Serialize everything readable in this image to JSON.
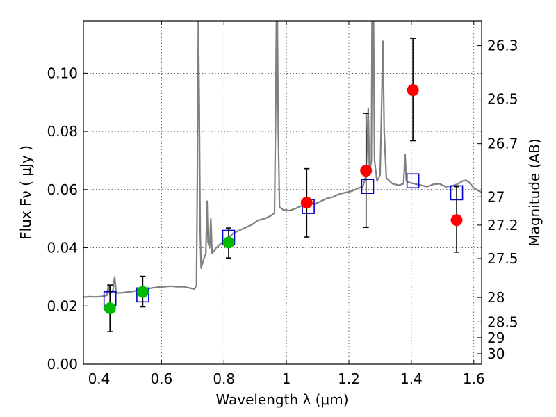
{
  "chart_data": {
    "type": "scatter",
    "xlabel": "Wavelength  λ (μm)",
    "ylabel": "Flux  Fν  ( μJy )",
    "y2label": "Magnitude (AB)",
    "xlim": [
      0.35,
      1.625
    ],
    "ylim": [
      0.0,
      0.118
    ],
    "grid": true,
    "x_ticks": [
      0.4,
      0.6,
      0.8,
      1.0,
      1.2,
      1.4,
      1.6
    ],
    "x_tick_labels": [
      "0.4",
      "0.6",
      "0.8",
      "1",
      "1.2",
      "1.4",
      "1.6"
    ],
    "y_ticks": [
      0.0,
      0.02,
      0.04,
      0.06,
      0.08,
      0.1
    ],
    "y_tick_labels": [
      "0.00",
      "0.02",
      "0.04",
      "0.06",
      "0.08",
      "0.10"
    ],
    "y2_ticks": [
      {
        "label": "26.3",
        "flux": 0.1095
      },
      {
        "label": "26.5",
        "flux": 0.0911
      },
      {
        "label": "26.7",
        "flux": 0.0758
      },
      {
        "label": "27",
        "flux": 0.0575
      },
      {
        "label": "27.2",
        "flux": 0.0478
      },
      {
        "label": "27.5",
        "flux": 0.0363
      },
      {
        "label": "28",
        "flux": 0.0229
      },
      {
        "label": "28.5",
        "flux": 0.0145
      },
      {
        "label": "29",
        "flux": 0.0091
      },
      {
        "label": "30",
        "flux": 0.0036
      }
    ],
    "series": [
      {
        "kind": "spectrum",
        "color": "#808080",
        "points": [
          [
            0.35,
            0.023
          ],
          [
            0.37,
            0.0232
          ],
          [
            0.39,
            0.0231
          ],
          [
            0.41,
            0.0233
          ],
          [
            0.425,
            0.0236
          ],
          [
            0.43,
            0.027
          ],
          [
            0.435,
            0.024
          ],
          [
            0.445,
            0.0255
          ],
          [
            0.45,
            0.03
          ],
          [
            0.455,
            0.0245
          ],
          [
            0.47,
            0.0245
          ],
          [
            0.49,
            0.0248
          ],
          [
            0.51,
            0.025
          ],
          [
            0.53,
            0.0256
          ],
          [
            0.55,
            0.0258
          ],
          [
            0.57,
            0.0262
          ],
          [
            0.59,
            0.0265
          ],
          [
            0.61,
            0.0266
          ],
          [
            0.63,
            0.0268
          ],
          [
            0.65,
            0.0266
          ],
          [
            0.67,
            0.0266
          ],
          [
            0.69,
            0.0262
          ],
          [
            0.705,
            0.0258
          ],
          [
            0.712,
            0.027
          ],
          [
            0.716,
            0.08
          ],
          [
            0.718,
            0.118
          ],
          [
            0.721,
            0.09
          ],
          [
            0.724,
            0.045
          ],
          [
            0.727,
            0.033
          ],
          [
            0.735,
            0.036
          ],
          [
            0.742,
            0.038
          ],
          [
            0.746,
            0.056
          ],
          [
            0.749,
            0.042
          ],
          [
            0.754,
            0.04
          ],
          [
            0.758,
            0.05
          ],
          [
            0.762,
            0.038
          ],
          [
            0.775,
            0.04
          ],
          [
            0.79,
            0.0415
          ],
          [
            0.81,
            0.043
          ],
          [
            0.83,
            0.045
          ],
          [
            0.85,
            0.046
          ],
          [
            0.87,
            0.047
          ],
          [
            0.89,
            0.048
          ],
          [
            0.91,
            0.0495
          ],
          [
            0.93,
            0.05
          ],
          [
            0.95,
            0.051
          ],
          [
            0.962,
            0.052
          ],
          [
            0.966,
            0.09
          ],
          [
            0.968,
            0.118
          ],
          [
            0.971,
            0.118
          ],
          [
            0.974,
            0.08
          ],
          [
            0.978,
            0.054
          ],
          [
            0.99,
            0.053
          ],
          [
            1.01,
            0.0528
          ],
          [
            1.03,
            0.0535
          ],
          [
            1.05,
            0.0545
          ],
          [
            1.07,
            0.0555
          ],
          [
            1.09,
            0.055
          ],
          [
            1.11,
            0.056
          ],
          [
            1.13,
            0.057
          ],
          [
            1.15,
            0.0575
          ],
          [
            1.17,
            0.0585
          ],
          [
            1.19,
            0.059
          ],
          [
            1.21,
            0.0595
          ],
          [
            1.23,
            0.0605
          ],
          [
            1.245,
            0.061
          ],
          [
            1.255,
            0.065
          ],
          [
            1.262,
            0.088
          ],
          [
            1.266,
            0.065
          ],
          [
            1.272,
            0.07
          ],
          [
            1.274,
            0.118
          ],
          [
            1.279,
            0.118
          ],
          [
            1.282,
            0.07
          ],
          [
            1.29,
            0.063
          ],
          [
            1.3,
            0.065
          ],
          [
            1.305,
            0.09
          ],
          [
            1.309,
            0.111
          ],
          [
            1.313,
            0.08
          ],
          [
            1.32,
            0.064
          ],
          [
            1.34,
            0.062
          ],
          [
            1.36,
            0.0615
          ],
          [
            1.375,
            0.062
          ],
          [
            1.38,
            0.072
          ],
          [
            1.384,
            0.063
          ],
          [
            1.39,
            0.0625
          ],
          [
            1.41,
            0.062
          ],
          [
            1.43,
            0.0615
          ],
          [
            1.45,
            0.061
          ],
          [
            1.47,
            0.0618
          ],
          [
            1.49,
            0.062
          ],
          [
            1.51,
            0.061
          ],
          [
            1.53,
            0.0612
          ],
          [
            1.55,
            0.062
          ],
          [
            1.565,
            0.063
          ],
          [
            1.575,
            0.0632
          ],
          [
            1.585,
            0.0625
          ],
          [
            1.6,
            0.0605
          ],
          [
            1.625,
            0.059
          ]
        ]
      },
      {
        "kind": "model-photometry",
        "color": "#0000cc",
        "marker": "square",
        "x": [
          0.435,
          0.54,
          0.815,
          1.07,
          1.26,
          1.405,
          1.545
        ],
        "y": [
          0.0225,
          0.0238,
          0.0436,
          0.0542,
          0.0611,
          0.063,
          0.0589
        ]
      },
      {
        "kind": "observed-green",
        "color": "#00bb00",
        "marker": "circle",
        "x": [
          0.435,
          0.54,
          0.815
        ],
        "y": [
          0.0192,
          0.0248,
          0.0418
        ],
        "yerr_low": [
          0.0112,
          0.0197,
          0.0365
        ],
        "yerr_high": [
          0.0272,
          0.0302,
          0.0468
        ]
      },
      {
        "kind": "observed-red",
        "color": "#ff0000",
        "marker": "circle",
        "x": [
          1.065,
          1.255,
          1.405,
          1.545
        ],
        "y": [
          0.0555,
          0.0665,
          0.0942,
          0.0495
        ],
        "yerr_low": [
          0.0437,
          0.047,
          0.0768,
          0.0385
        ],
        "yerr_high": [
          0.0672,
          0.0862,
          0.112,
          0.061
        ]
      }
    ]
  }
}
